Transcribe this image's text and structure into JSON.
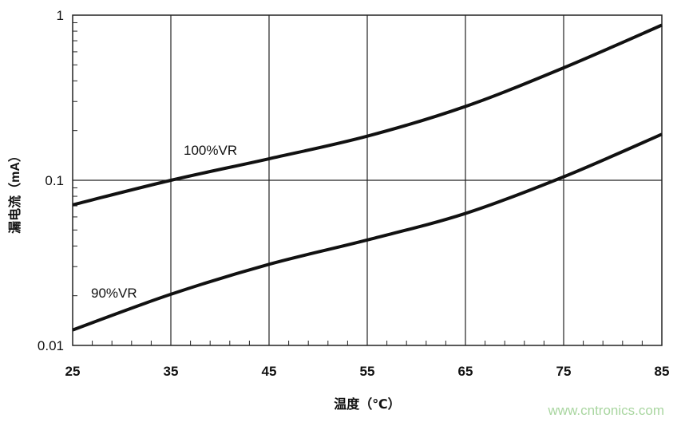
{
  "chart_data": {
    "type": "line",
    "title": "",
    "xlabel": "温度（℃）",
    "ylabel": "漏电流（mA）",
    "x_scale": "linear",
    "y_scale": "log",
    "xlim": [
      25,
      85
    ],
    "ylim": [
      0.01,
      1
    ],
    "x_ticks": [
      "25",
      "35",
      "45",
      "55",
      "65",
      "75",
      "85"
    ],
    "y_ticks": [
      "0.01",
      "0.1",
      "1"
    ],
    "grid": true,
    "x": [
      25,
      35,
      45,
      55,
      65,
      75,
      85
    ],
    "series": [
      {
        "name": "100%VR",
        "values": [
          0.071,
          0.1,
          0.135,
          0.185,
          0.28,
          0.48,
          0.87
        ]
      },
      {
        "name": "90%VR",
        "values": [
          0.0124,
          0.0204,
          0.031,
          0.0435,
          0.063,
          0.105,
          0.19
        ]
      }
    ],
    "line_color": "#111111"
  },
  "watermark": "www.cntronics.com"
}
